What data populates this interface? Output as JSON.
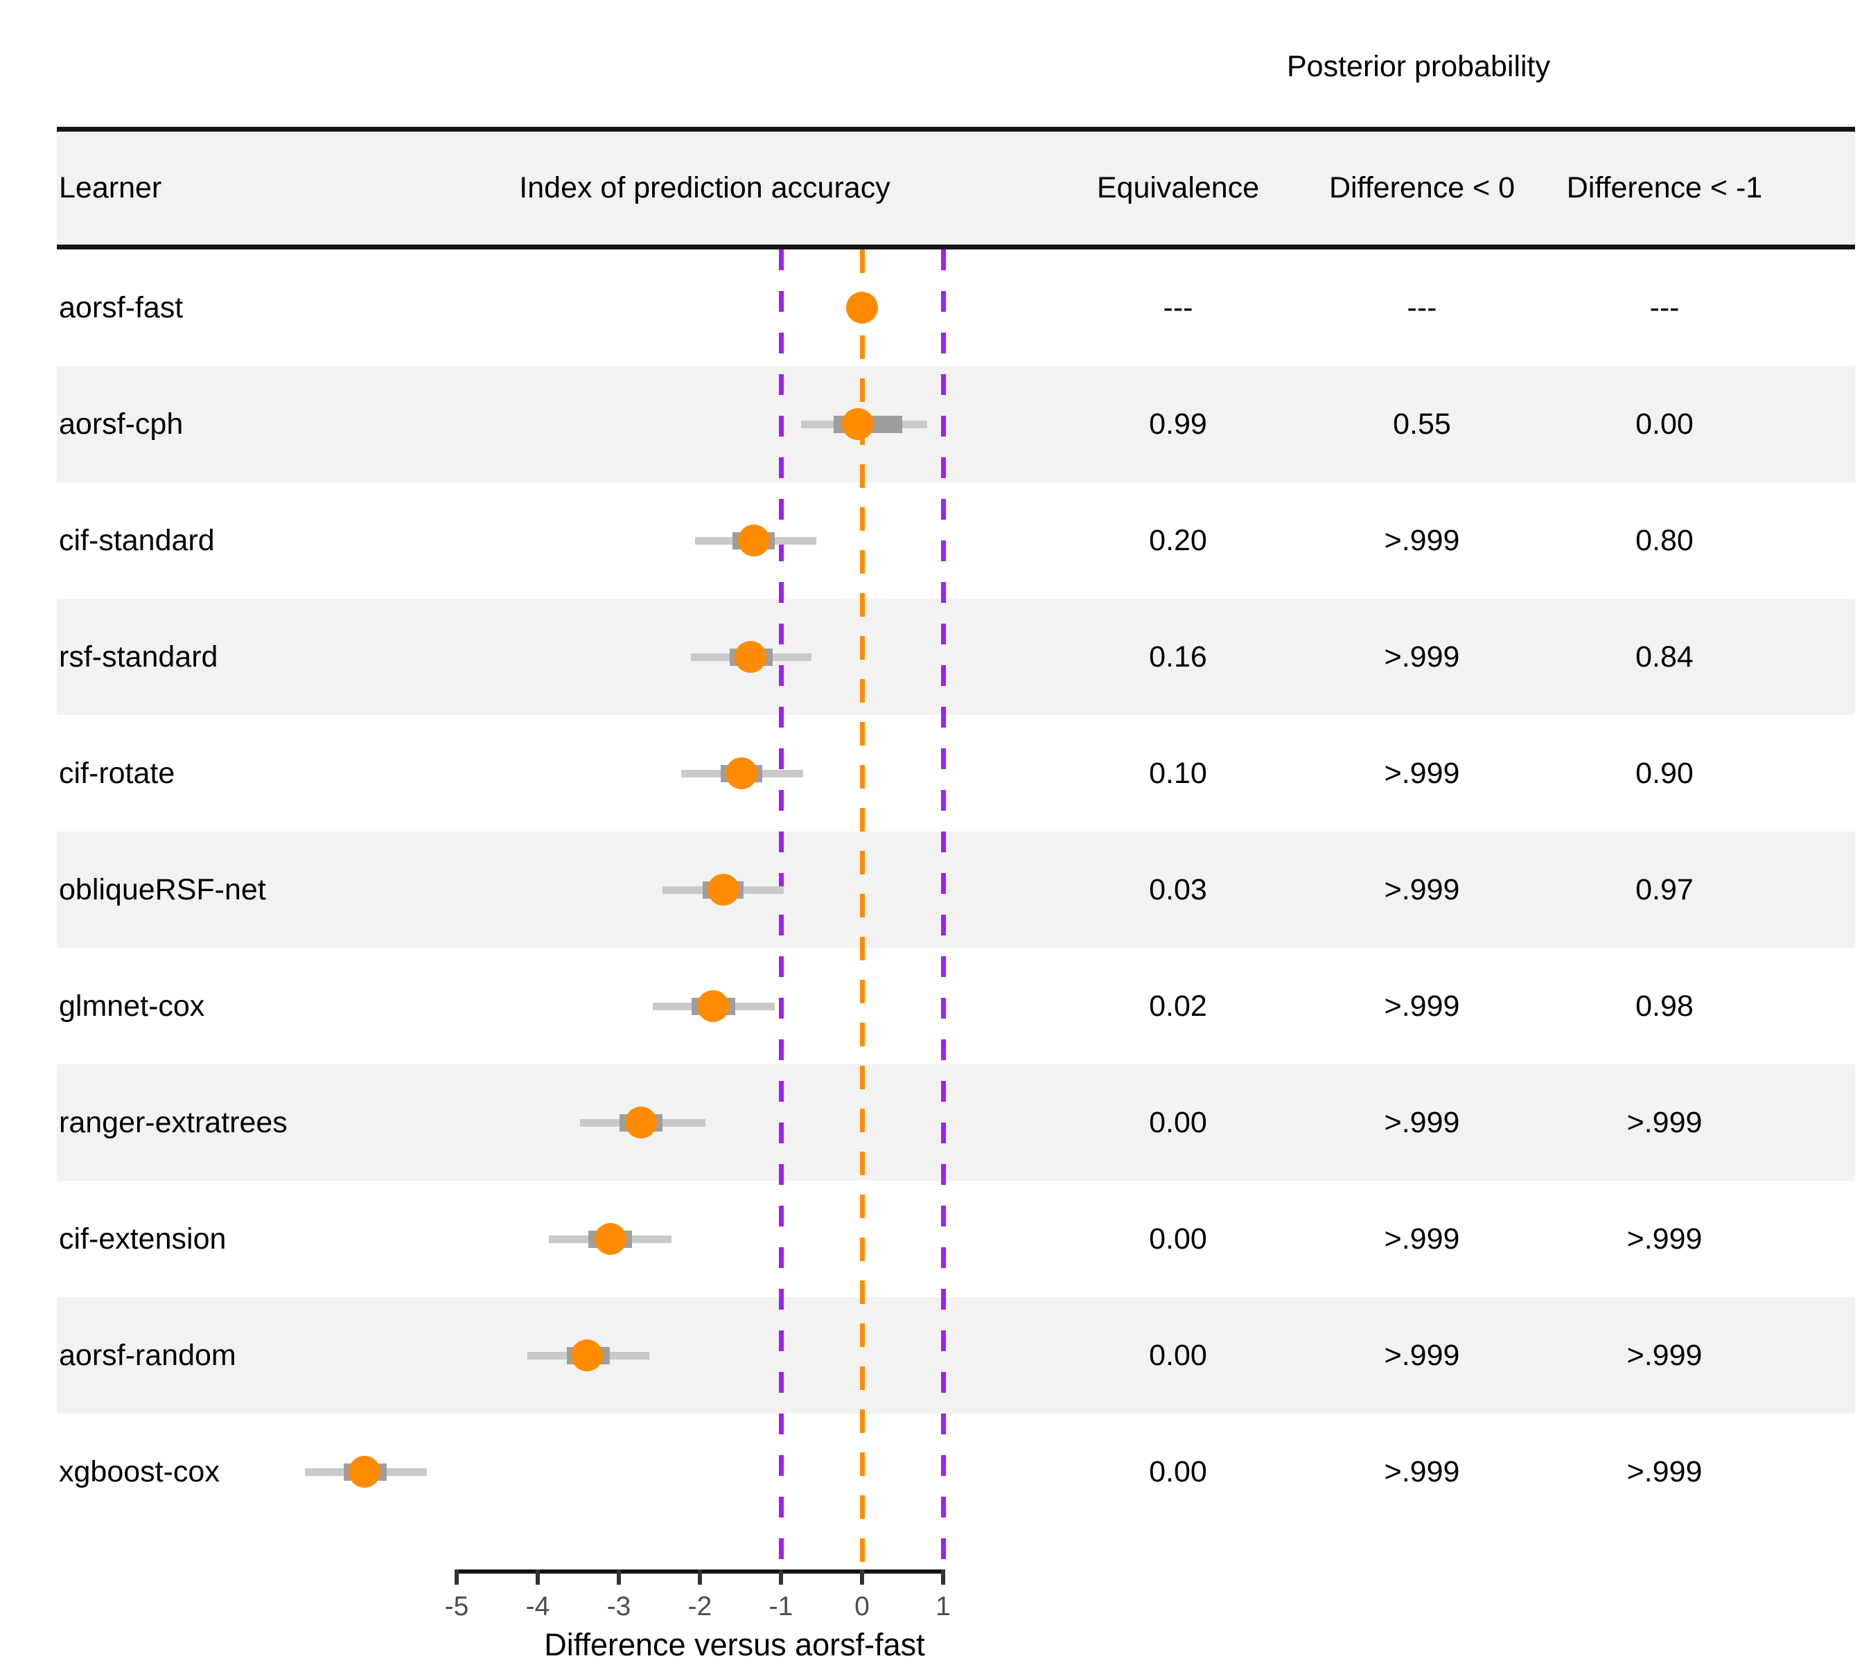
{
  "chart_data": {
    "type": "scatter",
    "subtype": "forest-plot-with-table",
    "title": "Posterior probability",
    "xlabel": "Difference versus aorsf-fast",
    "x_ticks": [
      -5,
      -4,
      -3,
      -2,
      -1,
      0,
      1
    ],
    "xlim": [
      -7.3,
      2.6
    ],
    "grid": false,
    "legend_position": "none",
    "columns": [
      "Learner",
      "Index of prediction accuracy",
      "Equivalence",
      "Difference < 0",
      "Difference < -1"
    ],
    "reference_lines": [
      {
        "value": -1,
        "color_key": "purple",
        "style": "dashed"
      },
      {
        "value": 0,
        "color_key": "orange",
        "style": "dashed"
      },
      {
        "value": 1,
        "color_key": "purple",
        "style": "dashed"
      }
    ],
    "rows": [
      {
        "learner": "aorsf-fast",
        "estimate": 0.0,
        "ci_inner": null,
        "ci_outer": null,
        "equivalence": "---",
        "diff_lt_0": "---",
        "diff_lt_neg1": "---",
        "shaded": false
      },
      {
        "learner": "aorsf-cph",
        "estimate": -0.05,
        "ci_inner": [
          -0.35,
          0.5
        ],
        "ci_outer": [
          -0.75,
          0.8
        ],
        "equivalence": "0.99",
        "diff_lt_0": "0.55",
        "diff_lt_neg1": "0.00",
        "shaded": true
      },
      {
        "learner": "cif-standard",
        "estimate": -1.33,
        "ci_inner": [
          -1.6,
          -1.08
        ],
        "ci_outer": [
          -2.06,
          -0.56
        ],
        "equivalence": "0.20",
        "diff_lt_0": ">.999",
        "diff_lt_neg1": "0.80",
        "shaded": false
      },
      {
        "learner": "rsf-standard",
        "estimate": -1.38,
        "ci_inner": [
          -1.63,
          -1.1
        ],
        "ci_outer": [
          -2.11,
          -0.62
        ],
        "equivalence": "0.16",
        "diff_lt_0": ">.999",
        "diff_lt_neg1": "0.84",
        "shaded": true
      },
      {
        "learner": "cif-rotate",
        "estimate": -1.49,
        "ci_inner": [
          -1.74,
          -1.23
        ],
        "ci_outer": [
          -2.23,
          -0.73
        ],
        "equivalence": "0.10",
        "diff_lt_0": ">.999",
        "diff_lt_neg1": "0.90",
        "shaded": false
      },
      {
        "learner": "obliqueRSF-net",
        "estimate": -1.71,
        "ci_inner": [
          -1.97,
          -1.46
        ],
        "ci_outer": [
          -2.46,
          -0.97
        ],
        "equivalence": "0.03",
        "diff_lt_0": ">.999",
        "diff_lt_neg1": "0.97",
        "shaded": true
      },
      {
        "learner": "glmnet-cox",
        "estimate": -1.84,
        "ci_inner": [
          -2.1,
          -1.56
        ],
        "ci_outer": [
          -2.58,
          -1.08
        ],
        "equivalence": "0.02",
        "diff_lt_0": ">.999",
        "diff_lt_neg1": "0.98",
        "shaded": false
      },
      {
        "learner": "ranger-extratrees",
        "estimate": -2.73,
        "ci_inner": [
          -2.99,
          -2.46
        ],
        "ci_outer": [
          -3.48,
          -1.93
        ],
        "equivalence": "0.00",
        "diff_lt_0": ">.999",
        "diff_lt_neg1": ">.999",
        "shaded": true
      },
      {
        "learner": "cif-extension",
        "estimate": -3.1,
        "ci_inner": [
          -3.38,
          -2.84
        ],
        "ci_outer": [
          -3.86,
          -2.35
        ],
        "equivalence": "0.00",
        "diff_lt_0": ">.999",
        "diff_lt_neg1": ">.999",
        "shaded": false
      },
      {
        "learner": "aorsf-random",
        "estimate": -3.39,
        "ci_inner": [
          -3.64,
          -3.11
        ],
        "ci_outer": [
          -4.13,
          -2.62
        ],
        "equivalence": "0.00",
        "diff_lt_0": ">.999",
        "diff_lt_neg1": ">.999",
        "shaded": true
      },
      {
        "learner": "xgboost-cox",
        "estimate": -6.14,
        "ci_inner": [
          -6.39,
          -5.86
        ],
        "ci_outer": [
          -6.87,
          -5.37
        ],
        "equivalence": "0.00",
        "diff_lt_0": ">.999",
        "diff_lt_neg1": ">.999",
        "shaded": false
      }
    ],
    "colors": {
      "point_orange": "#FF8C00",
      "line_orange": "#FF8C00",
      "line_purple": "#A020F0",
      "ci_inner_gray": "#9e9e9e",
      "ci_outer_gray": "#c9c9c9",
      "band_gray": "#f2f2f2",
      "rule_black": "#141414",
      "tick_label_gray": "#4d4d4d"
    }
  }
}
